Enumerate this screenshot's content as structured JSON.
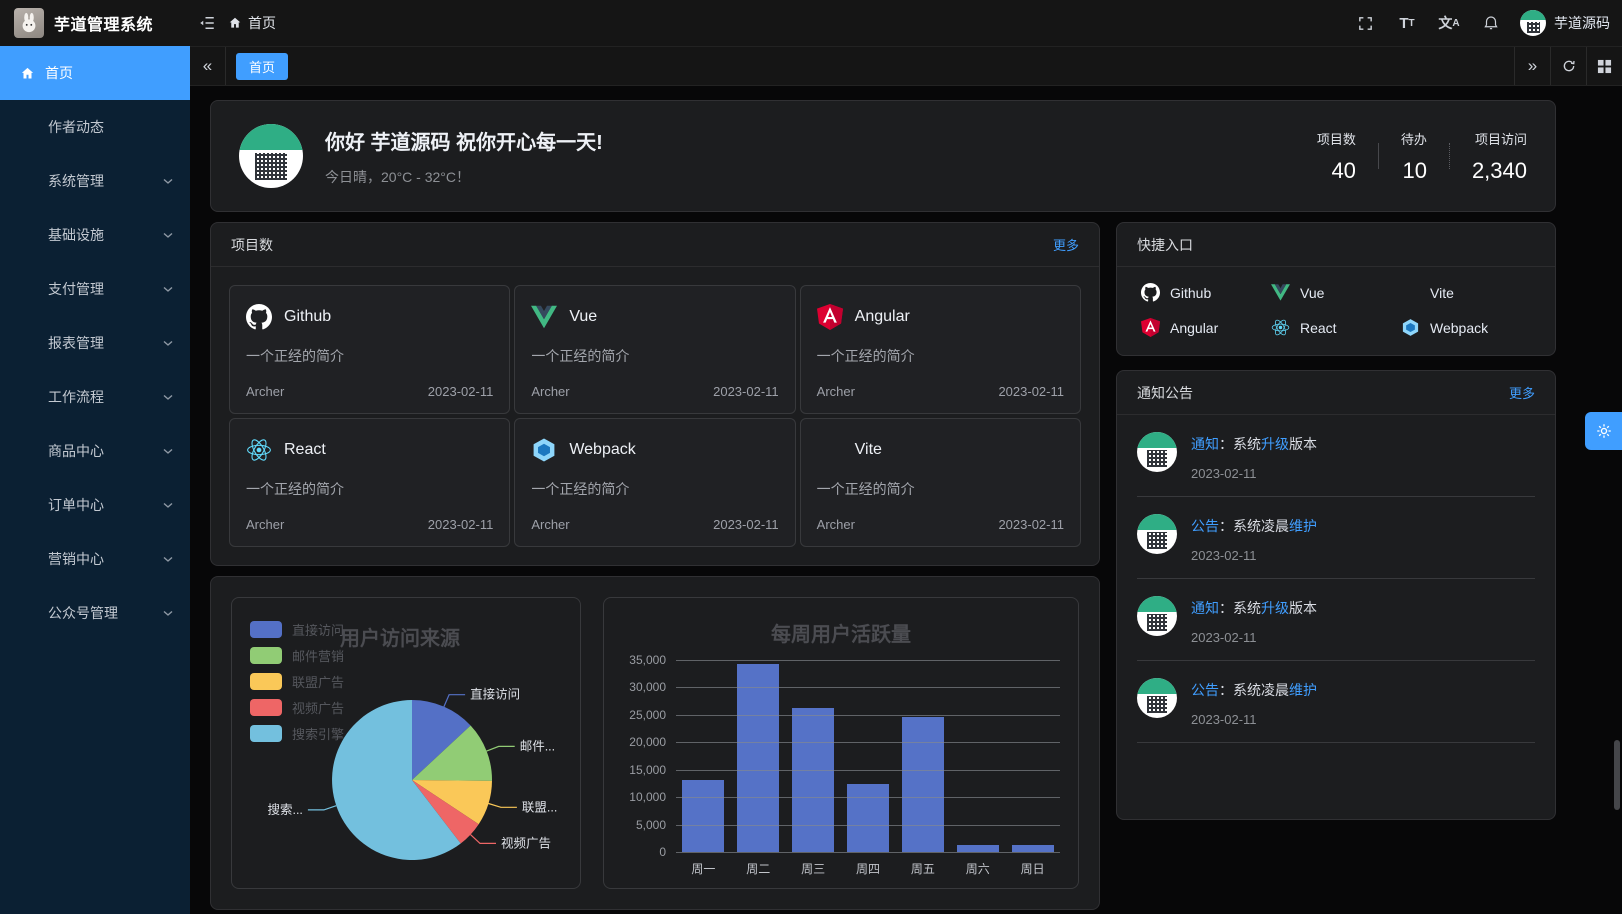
{
  "app": {
    "title": "芋道管理系统",
    "breadcrumb": "首页",
    "username": "芋道源码"
  },
  "tabbar": {
    "collapse_left": "«",
    "collapse_right": "»",
    "active_tab": "首页"
  },
  "sidebar": {
    "items": [
      {
        "label": "首页",
        "active": true,
        "icon": "home",
        "has_children": false
      },
      {
        "label": "作者动态",
        "has_children": false
      },
      {
        "label": "系统管理",
        "has_children": true
      },
      {
        "label": "基础设施",
        "has_children": true
      },
      {
        "label": "支付管理",
        "has_children": true
      },
      {
        "label": "报表管理",
        "has_children": true
      },
      {
        "label": "工作流程",
        "has_children": true
      },
      {
        "label": "商品中心",
        "has_children": true
      },
      {
        "label": "订单中心",
        "has_children": true
      },
      {
        "label": "营销中心",
        "has_children": true
      },
      {
        "label": "公众号管理",
        "has_children": true
      }
    ]
  },
  "greeting": {
    "title": "你好 芋道源码 祝你开心每一天!",
    "subtitle": "今日晴，20°C - 32°C！",
    "stats": [
      {
        "label": "项目数",
        "value": "40"
      },
      {
        "label": "待办",
        "value": "10"
      },
      {
        "label": "项目访问",
        "value": "2,340"
      }
    ]
  },
  "projects": {
    "title": "项目数",
    "more": "更多",
    "items": [
      {
        "name": "Github",
        "icon": "github",
        "desc": "一个正经的简介",
        "author": "Archer",
        "date": "2023-02-11"
      },
      {
        "name": "Vue",
        "icon": "vue",
        "desc": "一个正经的简介",
        "author": "Archer",
        "date": "2023-02-11"
      },
      {
        "name": "Angular",
        "icon": "angular",
        "desc": "一个正经的简介",
        "author": "Archer",
        "date": "2023-02-11"
      },
      {
        "name": "React",
        "icon": "react",
        "desc": "一个正经的简介",
        "author": "Archer",
        "date": "2023-02-11"
      },
      {
        "name": "Webpack",
        "icon": "webpack",
        "desc": "一个正经的简介",
        "author": "Archer",
        "date": "2023-02-11"
      },
      {
        "name": "Vite",
        "icon": "vite",
        "desc": "一个正经的简介",
        "author": "Archer",
        "date": "2023-02-11"
      }
    ]
  },
  "shortcuts": {
    "title": "快捷入口",
    "items": [
      {
        "name": "Github",
        "icon": "github"
      },
      {
        "name": "Vue",
        "icon": "vue"
      },
      {
        "name": "Vite",
        "icon": "vite"
      },
      {
        "name": "Angular",
        "icon": "angular"
      },
      {
        "name": "React",
        "icon": "react"
      },
      {
        "name": "Webpack",
        "icon": "webpack"
      }
    ]
  },
  "notices": {
    "title": "通知公告",
    "more": "更多",
    "items": [
      {
        "parts": [
          {
            "t": "通知",
            "hl": true
          },
          {
            "t": "：系统"
          },
          {
            "t": "升级",
            "hl": true
          },
          {
            "t": "版本"
          }
        ],
        "date": "2023-02-11"
      },
      {
        "parts": [
          {
            "t": "公告",
            "hl": true
          },
          {
            "t": "：系统凌晨"
          },
          {
            "t": "维护",
            "hl": true
          }
        ],
        "date": "2023-02-11"
      },
      {
        "parts": [
          {
            "t": "通知",
            "hl": true
          },
          {
            "t": "：系统"
          },
          {
            "t": "升级",
            "hl": true
          },
          {
            "t": "版本"
          }
        ],
        "date": "2023-02-11"
      },
      {
        "parts": [
          {
            "t": "公告",
            "hl": true
          },
          {
            "t": "：系统凌晨"
          },
          {
            "t": "维护",
            "hl": true
          }
        ],
        "date": "2023-02-11"
      }
    ]
  },
  "chart_data": [
    {
      "type": "pie",
      "title": "用户访问来源",
      "legend_position": "left",
      "categories": [
        "直接访问",
        "邮件营销",
        "联盟广告",
        "视频广告",
        "搜索引擎"
      ],
      "values": [
        335,
        310,
        234,
        135,
        1548
      ],
      "colors": [
        "#5470c6",
        "#91cc75",
        "#fac858",
        "#ee6666",
        "#73c0de"
      ],
      "callout_labels": [
        "直接访问",
        "邮件...",
        "联盟...",
        "视频广告",
        "搜索..."
      ]
    },
    {
      "type": "bar",
      "title": "每周用户活跃量",
      "categories": [
        "周一",
        "周二",
        "周三",
        "周四",
        "周五",
        "周六",
        "周日"
      ],
      "values": [
        13200,
        34300,
        26300,
        12400,
        24700,
        1300,
        1300
      ],
      "ylim": [
        0,
        35000
      ],
      "ytick_labels": [
        "35,000",
        "30,000",
        "25,000",
        "20,000",
        "15,000",
        "10,000",
        "5,000",
        "0"
      ],
      "bar_color": "#5572c7",
      "grid": true
    }
  ]
}
